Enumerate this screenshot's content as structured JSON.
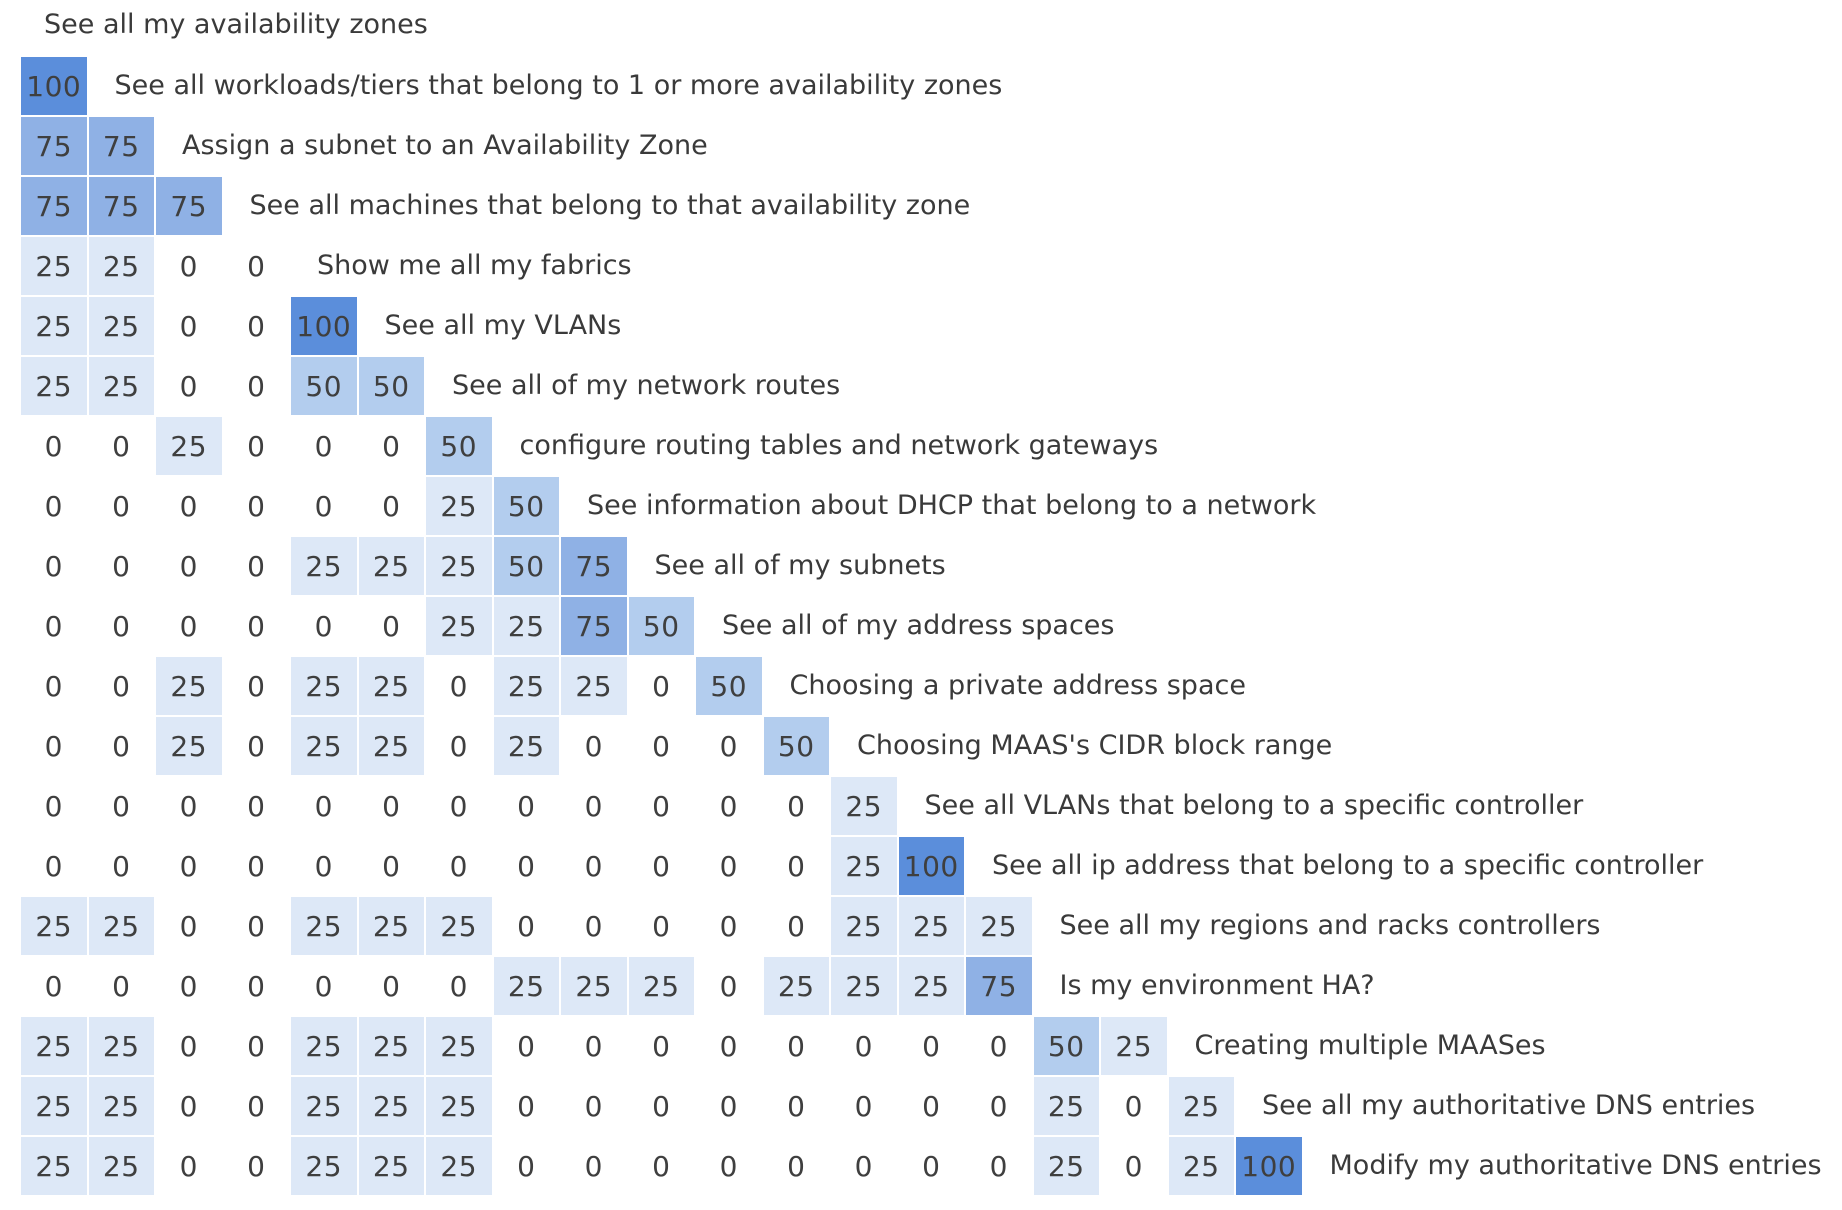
{
  "chart_data": {
    "type": "heatmap",
    "title": "See all my availability zones",
    "rows": [
      {
        "label": "See all workloads/tiers that belong to 1 or more availability zones",
        "values": [
          100
        ]
      },
      {
        "label": "Assign a subnet to an Availability Zone",
        "values": [
          75,
          75
        ]
      },
      {
        "label": "See all machines that belong to that availability zone",
        "values": [
          75,
          75,
          75
        ]
      },
      {
        "label": "Show me all my fabrics",
        "values": [
          25,
          25,
          0,
          0
        ]
      },
      {
        "label": "See all my VLANs",
        "values": [
          25,
          25,
          0,
          0,
          100
        ]
      },
      {
        "label": "See all of my network routes",
        "values": [
          25,
          25,
          0,
          0,
          50,
          50
        ]
      },
      {
        "label": "configure routing tables and network gateways",
        "values": [
          0,
          0,
          25,
          0,
          0,
          0,
          50
        ]
      },
      {
        "label": "See information about DHCP that belong to a network",
        "values": [
          0,
          0,
          0,
          0,
          0,
          0,
          25,
          50
        ]
      },
      {
        "label": "See all of my subnets",
        "values": [
          0,
          0,
          0,
          0,
          25,
          25,
          25,
          50,
          75
        ]
      },
      {
        "label": "See all of my address spaces",
        "values": [
          0,
          0,
          0,
          0,
          0,
          0,
          25,
          25,
          75,
          50
        ]
      },
      {
        "label": "Choosing a private address space",
        "values": [
          0,
          0,
          25,
          0,
          25,
          25,
          0,
          25,
          25,
          0,
          50
        ]
      },
      {
        "label": "Choosing MAAS's CIDR block range",
        "values": [
          0,
          0,
          25,
          0,
          25,
          25,
          0,
          25,
          0,
          0,
          0,
          50
        ]
      },
      {
        "label": "See all VLANs that belong to a specific controller",
        "values": [
          0,
          0,
          0,
          0,
          0,
          0,
          0,
          0,
          0,
          0,
          0,
          0,
          25
        ]
      },
      {
        "label": "See all ip address that belong to a specific controller",
        "values": [
          0,
          0,
          0,
          0,
          0,
          0,
          0,
          0,
          0,
          0,
          0,
          0,
          25,
          100
        ]
      },
      {
        "label": "See all my regions and racks controllers",
        "values": [
          25,
          25,
          0,
          0,
          25,
          25,
          25,
          0,
          0,
          0,
          0,
          0,
          25,
          25,
          25
        ]
      },
      {
        "label": "Is my environment HA?",
        "values": [
          0,
          0,
          0,
          0,
          0,
          0,
          0,
          25,
          25,
          25,
          0,
          25,
          25,
          25,
          75
        ]
      },
      {
        "label": "Creating multiple MAASes",
        "values": [
          25,
          25,
          0,
          0,
          25,
          25,
          25,
          0,
          0,
          0,
          0,
          0,
          0,
          0,
          0,
          50,
          25
        ]
      },
      {
        "label": "See all my authoritative DNS entries",
        "values": [
          25,
          25,
          0,
          0,
          25,
          25,
          25,
          0,
          0,
          0,
          0,
          0,
          0,
          0,
          0,
          25,
          0,
          25
        ]
      },
      {
        "label": "Modify my authoritative DNS entries",
        "values": [
          25,
          25,
          0,
          0,
          25,
          25,
          25,
          0,
          0,
          0,
          0,
          0,
          0,
          0,
          0,
          25,
          0,
          25,
          100
        ]
      }
    ],
    "colors": {
      "0": "#ffffff",
      "25": "#dde8f7",
      "50": "#b3cdee",
      "75": "#8fb1e5",
      "100": "#5b8edb"
    }
  }
}
